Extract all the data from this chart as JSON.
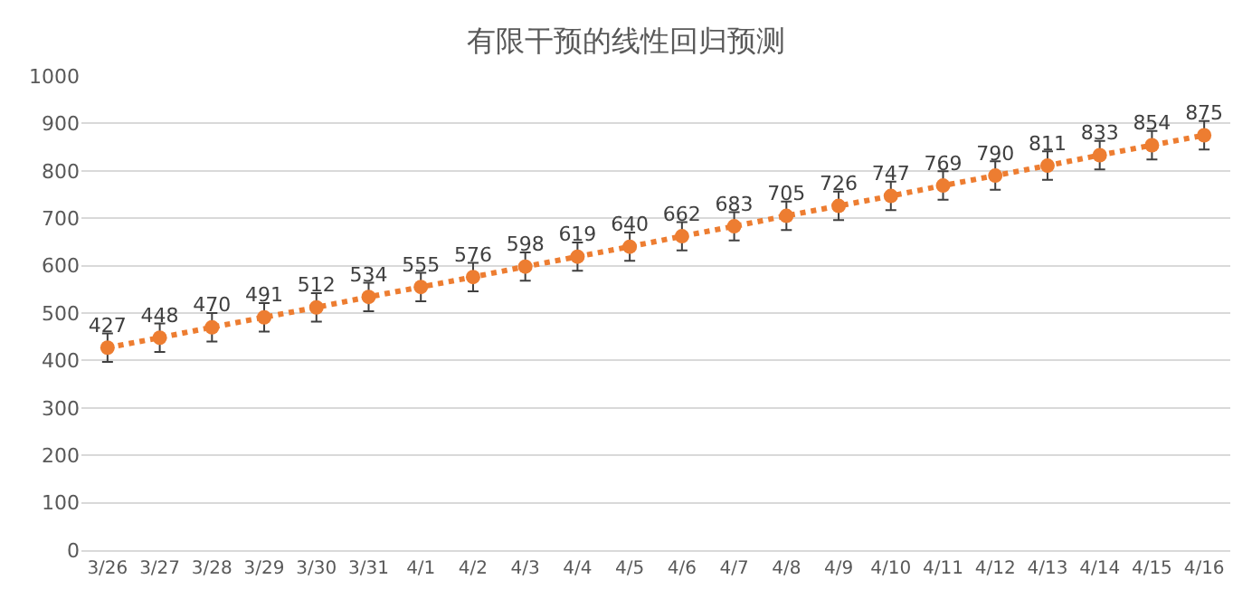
{
  "chart_data": {
    "type": "line",
    "title": "有限干预的线性回归预测",
    "categories": [
      "3/26",
      "3/27",
      "3/28",
      "3/29",
      "3/30",
      "3/31",
      "4/1",
      "4/2",
      "4/3",
      "4/4",
      "4/5",
      "4/6",
      "4/7",
      "4/8",
      "4/9",
      "4/10",
      "4/11",
      "4/12",
      "4/13",
      "4/14",
      "4/15",
      "4/16"
    ],
    "series": [
      {
        "color": "#ed7d31",
        "values": [
          427,
          448,
          470,
          491,
          512,
          534,
          555,
          576,
          598,
          619,
          640,
          662,
          683,
          705,
          726,
          747,
          769,
          790,
          811,
          833,
          854,
          875
        ],
        "errors": [
          30,
          30,
          30,
          30,
          30,
          30,
          30,
          30,
          30,
          30,
          30,
          30,
          30,
          30,
          30,
          30,
          30,
          30,
          30,
          30,
          30,
          30
        ]
      }
    ],
    "ylim": [
      0,
      1000
    ],
    "yticks": [
      0,
      100,
      200,
      300,
      400,
      500,
      600,
      700,
      800,
      900,
      1000
    ],
    "grid": "y",
    "marker": "circle",
    "line_style": "dotted",
    "data_labels": true
  }
}
